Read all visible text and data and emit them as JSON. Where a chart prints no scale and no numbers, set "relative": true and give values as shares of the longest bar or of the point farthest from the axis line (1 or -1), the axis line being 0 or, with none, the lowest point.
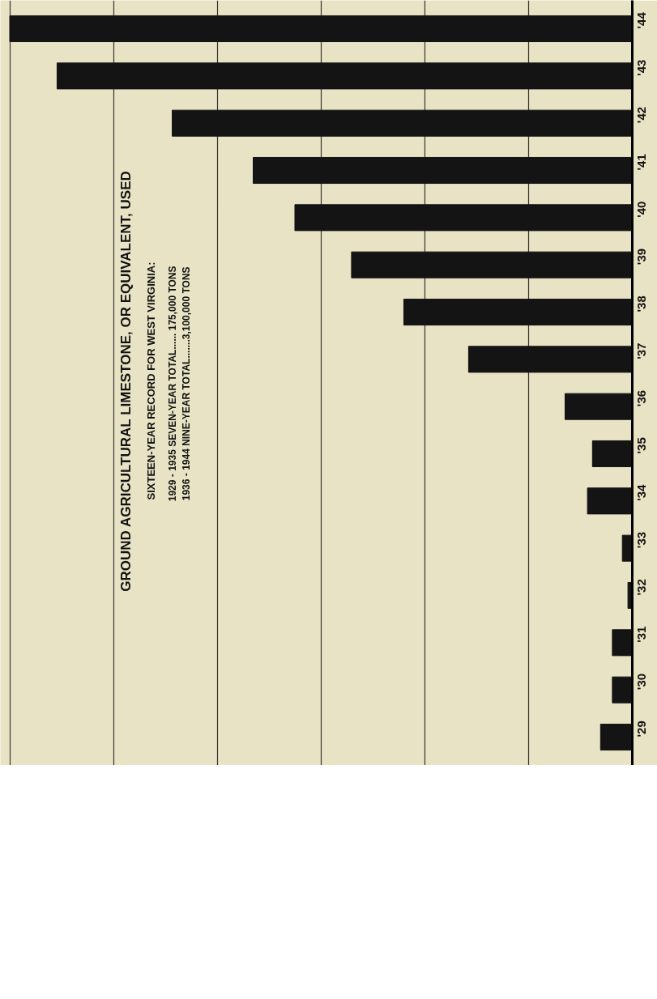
{
  "chart_data": {
    "type": "bar",
    "orientation": "horizontal",
    "relative": true,
    "grid": "x",
    "title": "GROUND AGRICULTURAL LIMESTONE, OR EQUIVALENT, USED",
    "subtitle": "SIXTEEN-YEAR RECORD FOR WEST VIRGINIA:",
    "annotations": [
      "1929 - 1935   SEVEN-YEAR TOTAL...... 175,000 TONS",
      "1936 - 1944   NINE-YEAR TOTAL.......3,100,000 TONS"
    ],
    "categories": [
      "'44",
      "'43",
      "'42",
      "'41",
      "'40",
      "'39",
      "'38",
      "'37",
      "'36",
      "'35",
      "'34",
      "'33",
      "'32",
      "'31",
      "'30",
      "'29"
    ],
    "color": "#141414",
    "values": [
      1.0,
      0.924,
      0.739,
      0.609,
      0.542,
      0.451,
      0.367,
      0.263,
      0.108,
      0.064,
      0.072,
      0.016,
      0.007,
      0.032,
      0.032,
      0.051
    ]
  }
}
